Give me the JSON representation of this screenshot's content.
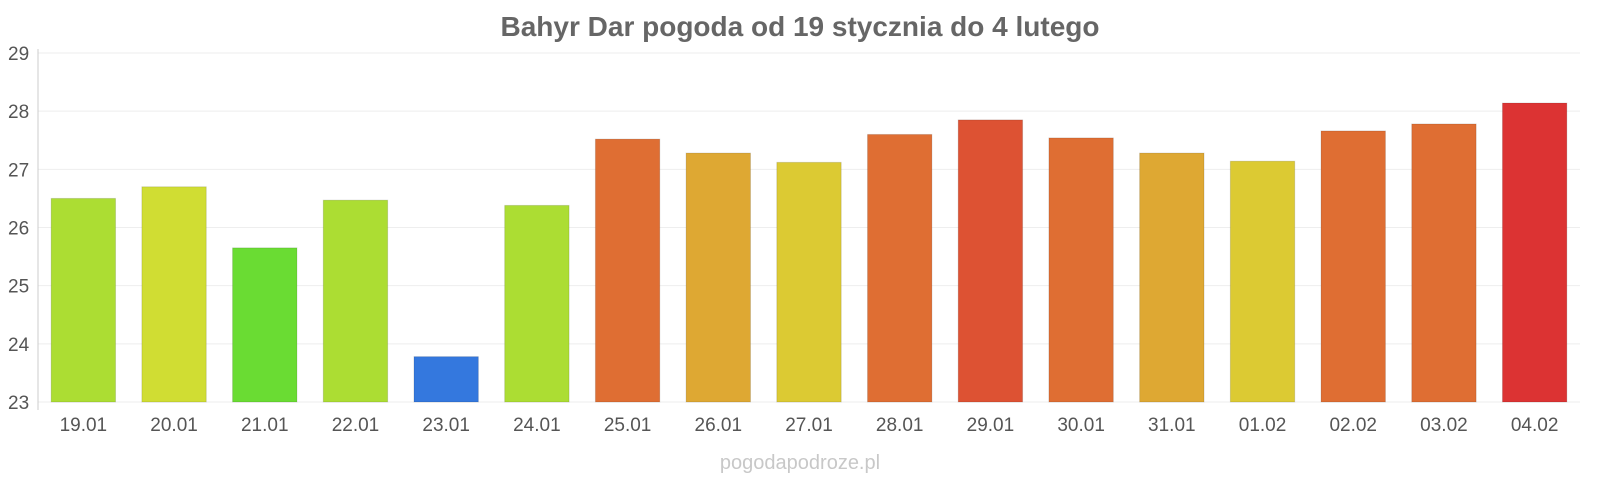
{
  "chart_data": {
    "type": "bar",
    "title": "Bahyr Dar pogoda od 19 stycznia do 4 lutego",
    "xlabel": "",
    "ylabel": "",
    "categories": [
      "19.01",
      "20.01",
      "21.01",
      "22.01",
      "23.01",
      "24.01",
      "25.01",
      "26.01",
      "27.01",
      "28.01",
      "29.01",
      "30.01",
      "31.01",
      "01.02",
      "02.02",
      "03.02",
      "04.02"
    ],
    "values": [
      26.5,
      26.7,
      25.65,
      26.47,
      23.78,
      26.38,
      27.52,
      27.28,
      27.12,
      27.6,
      27.85,
      27.54,
      27.28,
      27.14,
      27.66,
      27.78,
      28.14
    ],
    "colors": [
      "#acdd33",
      "#d0dd33",
      "#6adc33",
      "#acdd33",
      "#3478de",
      "#acdd33",
      "#df6e33",
      "#dea833",
      "#dcca33",
      "#df6e33",
      "#dd5233",
      "#df6e33",
      "#dea833",
      "#dcca33",
      "#df6e33",
      "#df6e33",
      "#dc3333"
    ],
    "ylim": [
      23,
      29
    ],
    "yticks": [
      23,
      24,
      25,
      26,
      27,
      28,
      29
    ],
    "grid": true,
    "legend": "none"
  },
  "source_text": "pogodapodroze.pl"
}
